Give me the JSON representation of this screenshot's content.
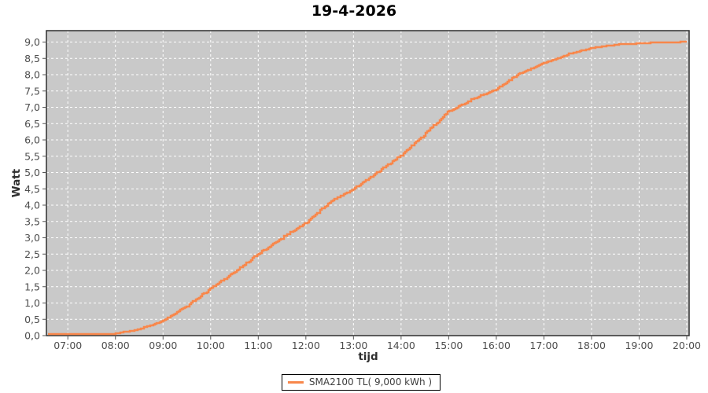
{
  "title": "19-4-2026",
  "axes": {
    "x_label": "tijd",
    "y_label": "Watt"
  },
  "legend": {
    "items": [
      {
        "label": "SMA2100 TL( 9,000 kWh )",
        "color": "#f8874b",
        "marker": "line-swatch"
      }
    ]
  },
  "colors": {
    "plot_bg": "#c9c9c9",
    "grid": "#ffffff",
    "border": "#2f2f2f",
    "tick_text": "#4d4d4d",
    "tick_mark": "#555555",
    "series": "#f8874b",
    "page_bg": "#ffffff"
  },
  "chart_data": {
    "type": "line",
    "title": "19-4-2026",
    "xlabel": "tijd",
    "ylabel": "Watt",
    "grid": "white dashed, on",
    "legend_position": "bottom-center",
    "plot_background": "#c9c9c9",
    "xlim_hours": [
      6.55,
      20.05
    ],
    "ylim": [
      0,
      9.35
    ],
    "x_tick_labels": [
      "07:00",
      "08:00",
      "09:00",
      "10:00",
      "11:00",
      "12:00",
      "13:00",
      "14:00",
      "15:00",
      "16:00",
      "17:00",
      "18:00",
      "19:00",
      "20:00"
    ],
    "x_tick_hours": [
      7,
      8,
      9,
      10,
      11,
      12,
      13,
      14,
      15,
      16,
      17,
      18,
      19,
      20
    ],
    "y_tick_labels": [
      "0,0",
      "0,5",
      "1,0",
      "1,5",
      "2,0",
      "2,5",
      "3,0",
      "3,5",
      "4,0",
      "4,5",
      "5,0",
      "5,5",
      "6,0",
      "6,5",
      "7,0",
      "7,5",
      "8,0",
      "8,5",
      "9,0"
    ],
    "y_tick_values": [
      0,
      0.5,
      1,
      1.5,
      2,
      2.5,
      3,
      3.5,
      4,
      4.5,
      5,
      5.5,
      6,
      6.5,
      7,
      7.5,
      8,
      8.5,
      9
    ],
    "series": [
      {
        "name": "SMA2100 TL( 9,000 kWh )",
        "color": "#f8874b",
        "x_hours": [
          6.58,
          7.0,
          7.5,
          8.0,
          8.5,
          9.0,
          9.5,
          10.0,
          10.5,
          11.0,
          11.5,
          12.0,
          12.5,
          13.0,
          13.5,
          14.0,
          14.5,
          15.0,
          15.5,
          16.0,
          16.5,
          17.0,
          17.5,
          18.0,
          18.5,
          19.0,
          19.5,
          20.0
        ],
        "values": [
          0.0,
          0.01,
          0.03,
          0.06,
          0.2,
          0.45,
          0.9,
          1.45,
          1.95,
          2.5,
          3.0,
          3.45,
          4.1,
          4.5,
          5.0,
          5.52,
          6.18,
          6.88,
          7.25,
          7.55,
          8.05,
          8.35,
          8.62,
          8.82,
          8.92,
          8.96,
          8.99,
          9.0
        ]
      }
    ]
  }
}
